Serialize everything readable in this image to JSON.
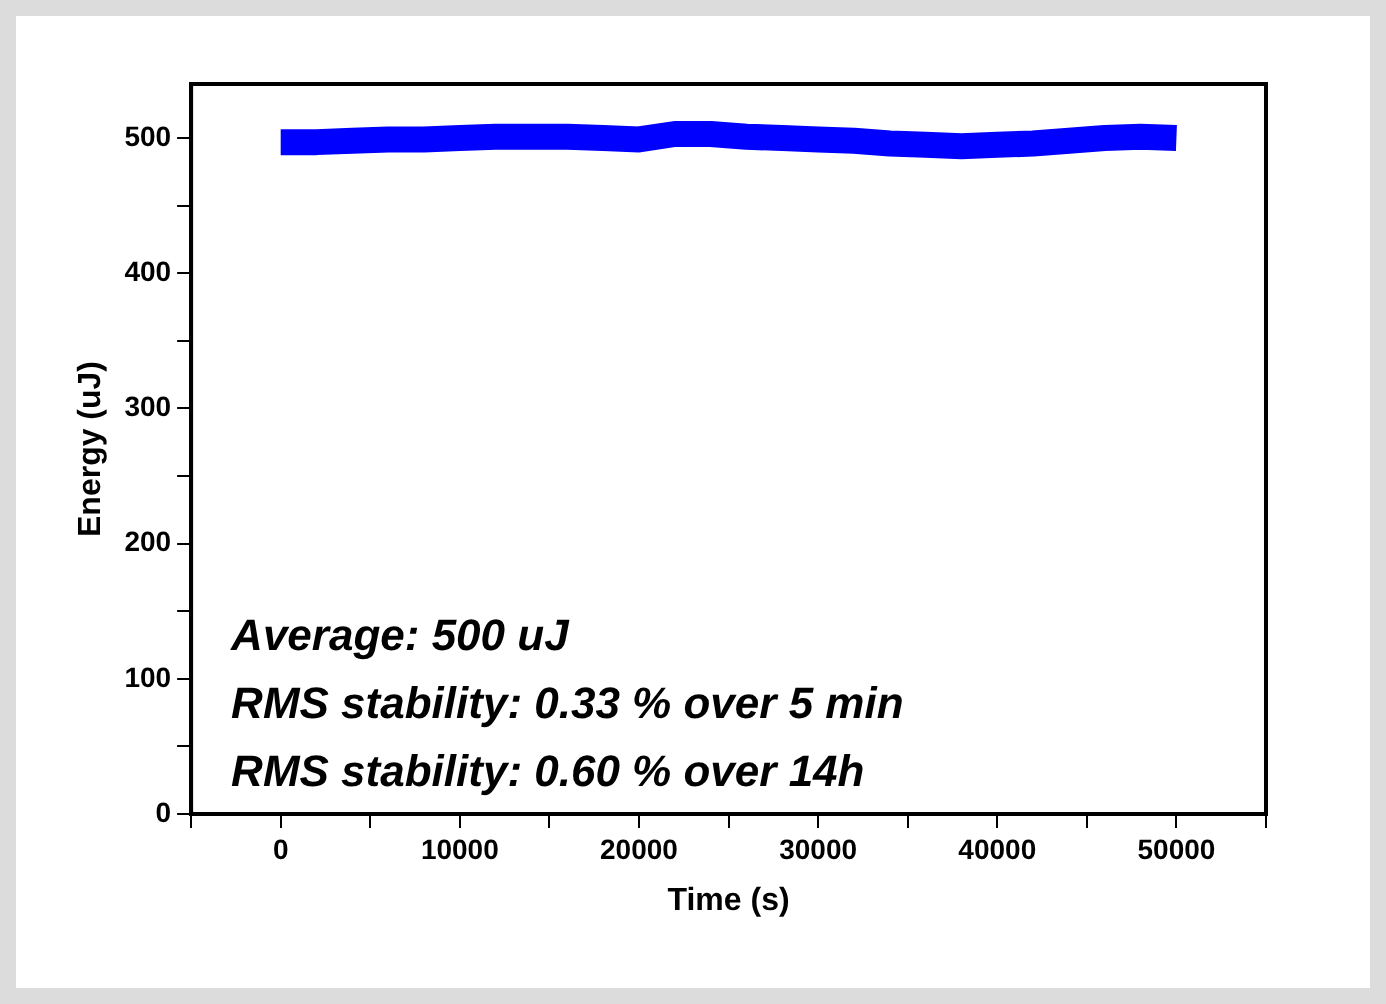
{
  "chart_data": {
    "type": "line",
    "xlabel": "Time (s)",
    "ylabel": "Energy (uJ)",
    "x": [
      0,
      2000,
      4000,
      6000,
      8000,
      10000,
      12000,
      14000,
      16000,
      18000,
      20000,
      22000,
      24000,
      26000,
      28000,
      30000,
      32000,
      34000,
      36000,
      38000,
      40000,
      42000,
      44000,
      46000,
      48000,
      50000
    ],
    "series": [
      {
        "color": "#0000ff",
        "values": [
          497,
          497,
          498,
          499,
          499,
          500,
          501,
          501,
          501,
          500,
          499,
          503,
          503,
          501,
          500,
          499,
          498,
          496,
          495,
          494,
          495,
          496,
          498,
          500,
          501,
          500
        ]
      }
    ],
    "xlim": [
      -5000,
      55000
    ],
    "xticks": [
      {
        "value": -5000,
        "label": null
      },
      0,
      {
        "value": 5000,
        "label": null
      },
      10000,
      {
        "value": 15000,
        "label": null
      },
      20000,
      {
        "value": 25000,
        "label": null
      },
      30000,
      {
        "value": 35000,
        "label": null
      },
      40000,
      {
        "value": 45000,
        "label": null
      },
      50000,
      {
        "value": 55000,
        "label": null
      }
    ],
    "ylim": [
      0,
      540
    ],
    "yticks": [
      0,
      {
        "value": 50,
        "label": null
      },
      100,
      {
        "value": 150,
        "label": null
      },
      200,
      {
        "value": 250,
        "label": null
      },
      300,
      {
        "value": 350,
        "label": null
      },
      400,
      {
        "value": 450,
        "label": null
      },
      500
    ],
    "grid": false,
    "legend": false,
    "marker": "none",
    "line_style": "solid",
    "annotations": [
      "Average: 500 uJ",
      "RMS stability: 0.33 % over 5 min",
      "RMS stability: 0.60 % over 14h"
    ]
  }
}
